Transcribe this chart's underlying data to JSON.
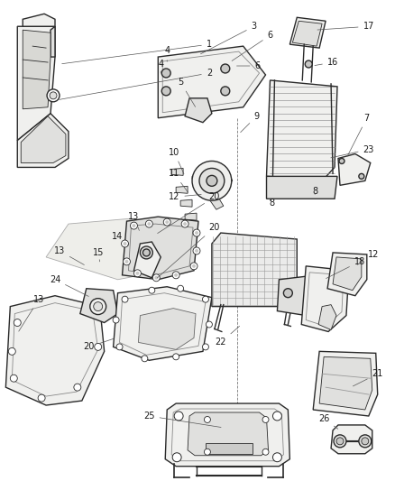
{
  "bg_color": "#ffffff",
  "line_color": "#2a2a2a",
  "fill_light": "#f0f0ee",
  "fill_mid": "#e0e0de",
  "fill_dark": "#c8c8c6",
  "label_color": "#1a1a1a",
  "fig_width": 4.38,
  "fig_height": 5.33,
  "dpi": 100
}
